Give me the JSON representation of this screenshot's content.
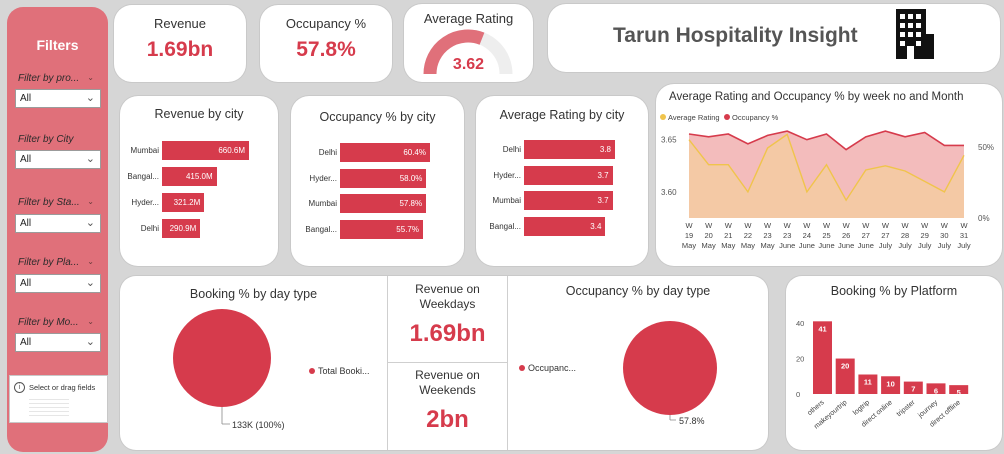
{
  "sidebar": {
    "title": "Filters",
    "filters": [
      {
        "label": "Filter by pro...",
        "value": "All"
      },
      {
        "label": "Filter by City",
        "value": "All"
      },
      {
        "label": "Filter by Sta...",
        "value": "All"
      },
      {
        "label": "Filter by Pla...",
        "value": "All"
      },
      {
        "label": "Filter by Mo...",
        "value": "All"
      }
    ],
    "fields_hint": "Select or drag fields"
  },
  "kpis": {
    "revenue": {
      "label": "Revenue",
      "value": "1.69bn"
    },
    "occupancy": {
      "label": "Occupancy %",
      "value": "57.8%"
    },
    "rating": {
      "label": "Average Rating",
      "value": "3.62",
      "gauge_fraction": 0.62
    }
  },
  "banner": {
    "title": "Tarun Hospitality Insight",
    "icon": "building-icon"
  },
  "colors": {
    "accent": "#d63b4c",
    "sidebar": "#e0707a",
    "rating_line": "#f0c44c",
    "area_fill": "#f2b5b5"
  },
  "weekdays": {
    "label": "Revenue on\nWeekdays",
    "value": "1.69bn"
  },
  "weekends": {
    "label": "Revenue on\nWeekends",
    "value": "2bn"
  },
  "chart_data": [
    {
      "type": "bar",
      "title": "Revenue by city",
      "categories": [
        "Mumbai",
        "Bangal...",
        "Hyder...",
        "Delhi"
      ],
      "values": [
        660.6,
        415.0,
        321.2,
        290.9
      ],
      "labels": [
        "660.6M",
        "415.0M",
        "321.2M",
        "290.9M"
      ]
    },
    {
      "type": "bar",
      "title": "Occupancy % by city",
      "categories": [
        "Delhi",
        "Hyder...",
        "Mumbai",
        "Bangal..."
      ],
      "values": [
        60.4,
        58.0,
        57.8,
        55.7
      ],
      "labels": [
        "60.4%",
        "58.0%",
        "57.8%",
        "55.7%"
      ]
    },
    {
      "type": "bar",
      "title": "Average Rating by city",
      "categories": [
        "Delhi",
        "Hyder...",
        "Mumbai",
        "Bangal..."
      ],
      "values": [
        3.8,
        3.7,
        3.7,
        3.4
      ],
      "labels": [
        "3.8",
        "3.7",
        "3.7",
        "3.4"
      ]
    },
    {
      "type": "line",
      "title": "Average Rating and Occupancy % by week no and Month",
      "legend": [
        "Average Rating",
        "Occupancy %"
      ],
      "legend_position": "top-left",
      "x": [
        [
          "W 19",
          "May"
        ],
        [
          "W 20",
          "May"
        ],
        [
          "W 21",
          "May"
        ],
        [
          "W 22",
          "May"
        ],
        [
          "W 23",
          "May"
        ],
        [
          "W 23",
          "June"
        ],
        [
          "W 24",
          "June"
        ],
        [
          "W 25",
          "June"
        ],
        [
          "W 26",
          "June"
        ],
        [
          "W 27",
          "June"
        ],
        [
          "W 27",
          "July"
        ],
        [
          "W 28",
          "July"
        ],
        [
          "W 29",
          "July"
        ],
        [
          "W 30",
          "July"
        ],
        [
          "W 31",
          "July"
        ]
      ],
      "series": [
        {
          "name": "Average Rating",
          "axis": "left",
          "values": [
            3.65,
            3.626,
            3.626,
            3.6,
            3.642,
            3.655,
            3.6,
            3.626,
            3.592,
            3.621,
            3.625,
            3.62,
            3.61,
            3.6,
            3.635
          ]
        },
        {
          "name": "Occupancy %",
          "axis": "right",
          "values": [
            59,
            57,
            59,
            52,
            58,
            61,
            55,
            59,
            48,
            57,
            61,
            57,
            60,
            51,
            51
          ]
        }
      ],
      "y_left_ticks": [
        "3.65",
        "3.60"
      ],
      "y_right_ticks": [
        "50%",
        "0%"
      ],
      "y_left_range": [
        3.575,
        3.665
      ],
      "y_right_range": [
        0,
        66
      ]
    },
    {
      "type": "pie",
      "title": "Booking % by day type",
      "slices": [
        {
          "name": "Total Booki...",
          "value": 100,
          "label": "133K (100%)"
        }
      ]
    },
    {
      "type": "pie",
      "title": "Occupancy % by day type",
      "slices": [
        {
          "name": "Occupanc...",
          "value": 57.8,
          "label": "57.8%"
        }
      ]
    },
    {
      "type": "bar",
      "title": "Booking % by Platform",
      "categories": [
        "others",
        "makeyourtrip",
        "logtrip",
        "direct online",
        "tripster",
        "journey",
        "direct offline"
      ],
      "values": [
        41,
        20,
        11,
        10,
        7,
        6,
        5
      ],
      "y_ticks": [
        "40",
        "20",
        "0"
      ],
      "ylim": [
        0,
        44
      ]
    }
  ]
}
